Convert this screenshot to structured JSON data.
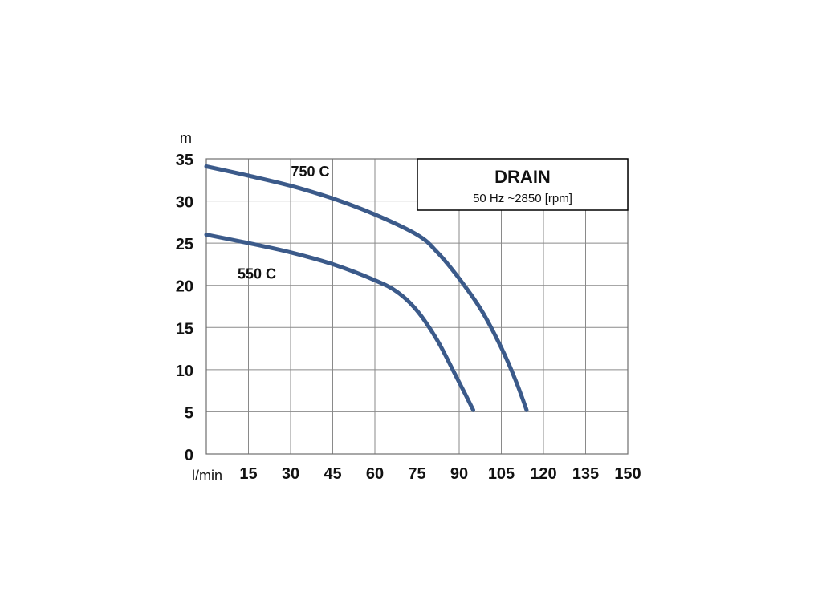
{
  "chart_data": {
    "type": "line",
    "title": "DRAIN",
    "subtitle": "50 Hz ~2850 [rpm]",
    "xlabel": "l/min",
    "ylabel": "m",
    "xlim": [
      0,
      150
    ],
    "ylim": [
      0,
      35
    ],
    "x_ticks": [
      15,
      30,
      45,
      60,
      75,
      90,
      105,
      120,
      135,
      150
    ],
    "x_tick_labels": [
      "15",
      "30",
      "45",
      "60",
      "75",
      "90",
      "105",
      "120",
      "135",
      "150"
    ],
    "y_ticks": [
      0,
      5,
      10,
      15,
      20,
      25,
      30,
      35
    ],
    "y_tick_labels": [
      "0",
      "5",
      "10",
      "15",
      "20",
      "25",
      "30",
      "35"
    ],
    "x_grid": [
      0,
      15,
      30,
      45,
      60,
      75,
      90,
      105,
      120,
      135,
      150
    ],
    "y_grid": [
      0,
      5,
      10,
      15,
      20,
      25,
      30,
      35
    ],
    "grid": true,
    "legend_position": "top-right",
    "series_color": "#3b5a8a",
    "series": [
      {
        "name": "750 C",
        "label_at": [
          37,
          32.9
        ],
        "points": [
          [
            0,
            34.1
          ],
          [
            15,
            33.0
          ],
          [
            30,
            31.8
          ],
          [
            45,
            30.3
          ],
          [
            60,
            28.4
          ],
          [
            75,
            26.0
          ],
          [
            82,
            24.0
          ],
          [
            90,
            20.8
          ],
          [
            98,
            17.0
          ],
          [
            105,
            12.6
          ],
          [
            110,
            8.8
          ],
          [
            114,
            5.2
          ]
        ]
      },
      {
        "name": "550 C",
        "label_at": [
          18,
          20.8
        ],
        "points": [
          [
            0,
            26.0
          ],
          [
            15,
            25.0
          ],
          [
            30,
            23.9
          ],
          [
            45,
            22.5
          ],
          [
            60,
            20.6
          ],
          [
            68,
            19.2
          ],
          [
            75,
            17.0
          ],
          [
            82,
            13.6
          ],
          [
            88,
            9.8
          ],
          [
            92,
            7.2
          ],
          [
            95,
            5.2
          ]
        ]
      }
    ]
  }
}
